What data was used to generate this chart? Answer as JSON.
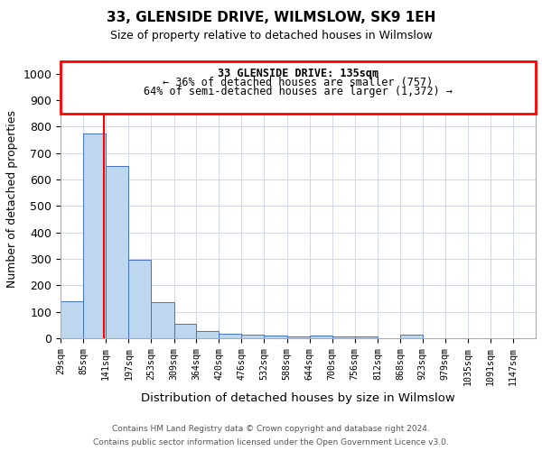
{
  "title": "33, GLENSIDE DRIVE, WILMSLOW, SK9 1EH",
  "subtitle": "Size of property relative to detached houses in Wilmslow",
  "xlabel": "Distribution of detached houses by size in Wilmslow",
  "ylabel": "Number of detached properties",
  "footnote1": "Contains HM Land Registry data © Crown copyright and database right 2024.",
  "footnote2": "Contains public sector information licensed under the Open Government Licence v3.0.",
  "annotation_line1": "33 GLENSIDE DRIVE: 135sqm",
  "annotation_line2": "← 36% of detached houses are smaller (757)",
  "annotation_line3": "64% of semi-detached houses are larger (1,372) →",
  "bar_color": "#bdd7ee",
  "bar_edge_color": "#4472c4",
  "vline_color": "#ff0000",
  "vline_x": 135,
  "categories": [
    "29sqm",
    "85sqm",
    "141sqm",
    "197sqm",
    "253sqm",
    "309sqm",
    "364sqm",
    "420sqm",
    "476sqm",
    "532sqm",
    "588sqm",
    "644sqm",
    "700sqm",
    "756sqm",
    "812sqm",
    "868sqm",
    "923sqm",
    "979sqm",
    "1035sqm",
    "1091sqm",
    "1147sqm"
  ],
  "bin_edges": [
    29,
    85,
    141,
    197,
    253,
    309,
    364,
    420,
    476,
    532,
    588,
    644,
    700,
    756,
    812,
    868,
    923,
    979,
    1035,
    1091,
    1147,
    1203
  ],
  "values": [
    140,
    775,
    650,
    295,
    135,
    55,
    28,
    18,
    15,
    10,
    8,
    10,
    8,
    8,
    0,
    12,
    0,
    0,
    0,
    0,
    0
  ],
  "ylim": [
    0,
    1050
  ],
  "yticks": [
    0,
    100,
    200,
    300,
    400,
    500,
    600,
    700,
    800,
    900,
    1000
  ],
  "background_color": "#ffffff",
  "grid_color": "#d0d8e8"
}
